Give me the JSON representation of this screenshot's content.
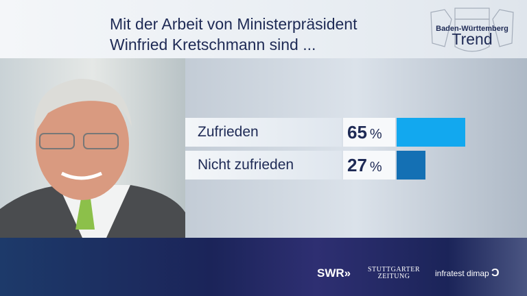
{
  "header": {
    "title_line1": "Mit der Arbeit von Ministerpräsident",
    "title_line2": "Winfried Kretschmann sind ..."
  },
  "logo": {
    "line1": "Baden-Württemberg",
    "line2": "Trend"
  },
  "chart_data": {
    "type": "bar",
    "orientation": "horizontal",
    "categories": [
      "Zufrieden",
      "Nicht zufrieden"
    ],
    "values": [
      65,
      27
    ],
    "unit": "%",
    "colors": [
      "#12a8ef",
      "#1470b4"
    ],
    "xlim": [
      0,
      100
    ]
  },
  "footer": {
    "swr": "SWR",
    "swr_icon": "double-chevron-right",
    "stz_line1": "STUTTGARTER",
    "stz_line2": "ZEITUNG",
    "infratest": "infratest dimap"
  }
}
